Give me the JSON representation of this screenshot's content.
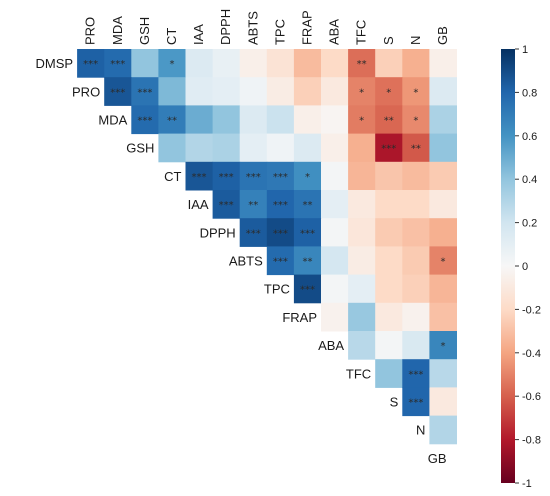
{
  "chart_data": {
    "type": "heatmap",
    "title": "",
    "variables": [
      "DMSP",
      "PRO",
      "MDA",
      "GSH",
      "CT",
      "IAA",
      "DPPH",
      "ABTS",
      "TPC",
      "FRAP",
      "ABA",
      "TFC",
      "S",
      "N",
      "GB"
    ],
    "matrix": [
      [
        null,
        0.82,
        0.78,
        0.4,
        0.58,
        0.14,
        0.08,
        -0.06,
        -0.14,
        -0.32,
        -0.2,
        -0.56,
        -0.24,
        -0.36,
        -0.06
      ],
      [
        null,
        null,
        0.86,
        0.74,
        0.45,
        0.12,
        0.1,
        0.04,
        -0.08,
        -0.24,
        -0.1,
        -0.5,
        -0.55,
        -0.44,
        0.14
      ],
      [
        null,
        null,
        null,
        0.78,
        0.7,
        0.5,
        0.4,
        0.14,
        0.22,
        -0.06,
        -0.02,
        -0.52,
        -0.58,
        -0.48,
        0.32
      ],
      [
        null,
        null,
        null,
        null,
        0.4,
        0.3,
        0.32,
        0.1,
        0.04,
        0.14,
        -0.06,
        -0.36,
        -0.82,
        -0.62,
        0.4
      ],
      [
        null,
        null,
        null,
        null,
        null,
        0.86,
        0.82,
        0.74,
        0.72,
        0.62,
        0.02,
        -0.34,
        -0.28,
        -0.32,
        -0.26
      ],
      [
        null,
        null,
        null,
        null,
        null,
        null,
        0.84,
        0.68,
        0.8,
        0.74,
        0.1,
        -0.1,
        -0.2,
        -0.2,
        -0.1
      ],
      [
        null,
        null,
        null,
        null,
        null,
        null,
        null,
        0.84,
        0.9,
        0.82,
        0.02,
        -0.12,
        -0.26,
        -0.3,
        -0.36
      ],
      [
        null,
        null,
        null,
        null,
        null,
        null,
        null,
        null,
        0.78,
        0.66,
        0.18,
        -0.08,
        -0.2,
        -0.26,
        -0.5
      ],
      [
        null,
        null,
        null,
        null,
        null,
        null,
        null,
        null,
        null,
        0.9,
        0.02,
        0.1,
        -0.2,
        -0.24,
        -0.34
      ],
      [
        null,
        null,
        null,
        null,
        null,
        null,
        null,
        null,
        null,
        null,
        -0.04,
        0.38,
        -0.1,
        -0.04,
        -0.3
      ],
      [
        null,
        null,
        null,
        null,
        null,
        null,
        null,
        null,
        null,
        null,
        null,
        0.28,
        0.02,
        0.16,
        0.66
      ],
      [
        null,
        null,
        null,
        null,
        null,
        null,
        null,
        null,
        null,
        null,
        null,
        null,
        0.4,
        0.8,
        0.28
      ],
      [
        null,
        null,
        null,
        null,
        null,
        null,
        null,
        null,
        null,
        null,
        null,
        null,
        null,
        0.8,
        -0.1
      ],
      [
        null,
        null,
        null,
        null,
        null,
        null,
        null,
        null,
        null,
        null,
        null,
        null,
        null,
        null,
        0.3
      ],
      [
        null,
        null,
        null,
        null,
        null,
        null,
        null,
        null,
        null,
        null,
        null,
        null,
        null,
        null,
        null
      ]
    ],
    "significance": [
      [
        "",
        "***",
        "***",
        "",
        "*",
        "",
        "",
        "",
        "",
        "",
        "",
        "**",
        "",
        "",
        ""
      ],
      [
        "",
        "",
        "***",
        "***",
        "",
        "",
        "",
        "",
        "",
        "",
        "",
        "*",
        "*",
        "*",
        ""
      ],
      [
        "",
        "",
        "",
        "***",
        "**",
        "",
        "",
        "",
        "",
        "",
        "",
        "*",
        "**",
        "*",
        ""
      ],
      [
        "",
        "",
        "",
        "",
        "",
        "",
        "",
        "",
        "",
        "",
        "",
        "",
        "***",
        "**",
        ""
      ],
      [
        "",
        "",
        "",
        "",
        "",
        "***",
        "***",
        "***",
        "***",
        "*",
        "",
        "",
        "",
        "",
        ""
      ],
      [
        "",
        "",
        "",
        "",
        "",
        "",
        "***",
        "**",
        "***",
        "**",
        "",
        "",
        "",
        "",
        ""
      ],
      [
        "",
        "",
        "",
        "",
        "",
        "",
        "",
        "***",
        "***",
        "***",
        "",
        "",
        "",
        "",
        ""
      ],
      [
        "",
        "",
        "",
        "",
        "",
        "",
        "",
        "",
        "***",
        "**",
        "",
        "",
        "",
        "",
        "*"
      ],
      [
        "",
        "",
        "",
        "",
        "",
        "",
        "",
        "",
        "",
        "***",
        "",
        "",
        "",
        "",
        ""
      ],
      [
        "",
        "",
        "",
        "",
        "",
        "",
        "",
        "",
        "",
        "",
        "",
        "",
        "",
        "",
        ""
      ],
      [
        "",
        "",
        "",
        "",
        "",
        "",
        "",
        "",
        "",
        "",
        "",
        "",
        "",
        "",
        "*"
      ],
      [
        "",
        "",
        "",
        "",
        "",
        "",
        "",
        "",
        "",
        "",
        "",
        "",
        "",
        "***",
        ""
      ],
      [
        "",
        "",
        "",
        "",
        "",
        "",
        "",
        "",
        "",
        "",
        "",
        "",
        "",
        "***",
        ""
      ],
      [
        "",
        "",
        "",
        "",
        "",
        "",
        "",
        "",
        "",
        "",
        "",
        "",
        "",
        "",
        ""
      ],
      [
        "",
        "",
        "",
        "",
        "",
        "",
        "",
        "",
        "",
        "",
        "",
        "",
        "",
        "",
        ""
      ]
    ],
    "colorbar": {
      "range": [
        -1,
        1
      ],
      "ticks": [
        "1",
        "0.8",
        "0.6",
        "0.4",
        "0.2",
        "0",
        "-0.2",
        "-0.4",
        "-0.6",
        "-0.8",
        "-1"
      ],
      "colormap": "RdBu"
    },
    "grid": false,
    "legend": "colorbar-right"
  }
}
